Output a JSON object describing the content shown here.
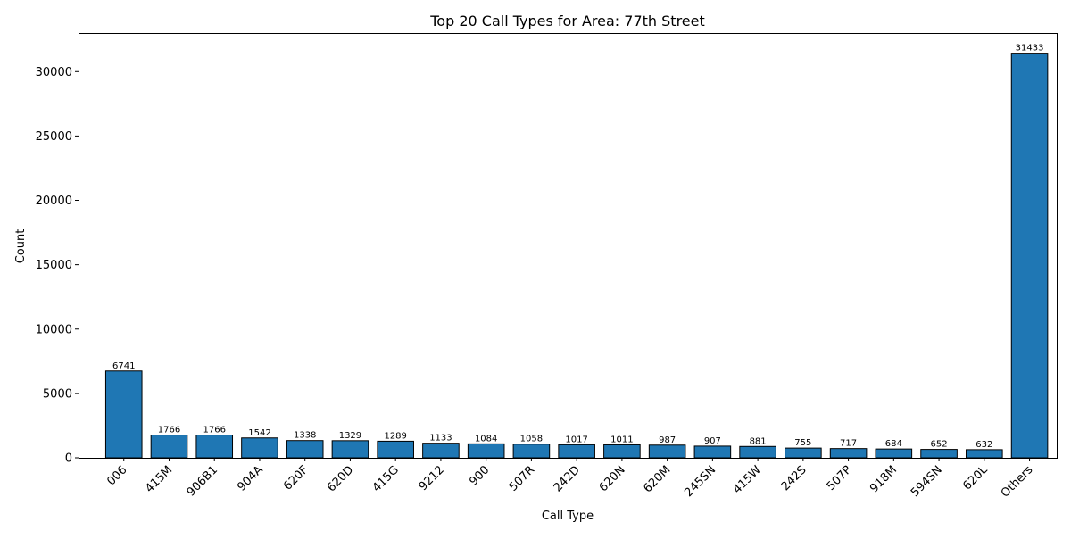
{
  "chart_data": {
    "type": "bar",
    "title": "Top 20 Call Types for Area: 77th Street",
    "xlabel": "Call Type",
    "ylabel": "Count",
    "categories": [
      "006",
      "415M",
      "906B1",
      "904A",
      "620F",
      "620D",
      "415G",
      "9212",
      "900",
      "507R",
      "242D",
      "620N",
      "620M",
      "245SN",
      "415W",
      "242S",
      "507P",
      "918M",
      "594SN",
      "620L",
      "Others"
    ],
    "values": [
      6741,
      1766,
      1766,
      1542,
      1338,
      1329,
      1289,
      1133,
      1084,
      1058,
      1017,
      1011,
      987,
      907,
      881,
      755,
      717,
      684,
      652,
      632,
      31433
    ],
    "yticks": [
      0,
      5000,
      10000,
      15000,
      20000,
      25000,
      30000
    ],
    "ylim": [
      0,
      33000
    ],
    "grid": false,
    "bar_color": "#1f77b4",
    "edge_color": "#000000"
  }
}
